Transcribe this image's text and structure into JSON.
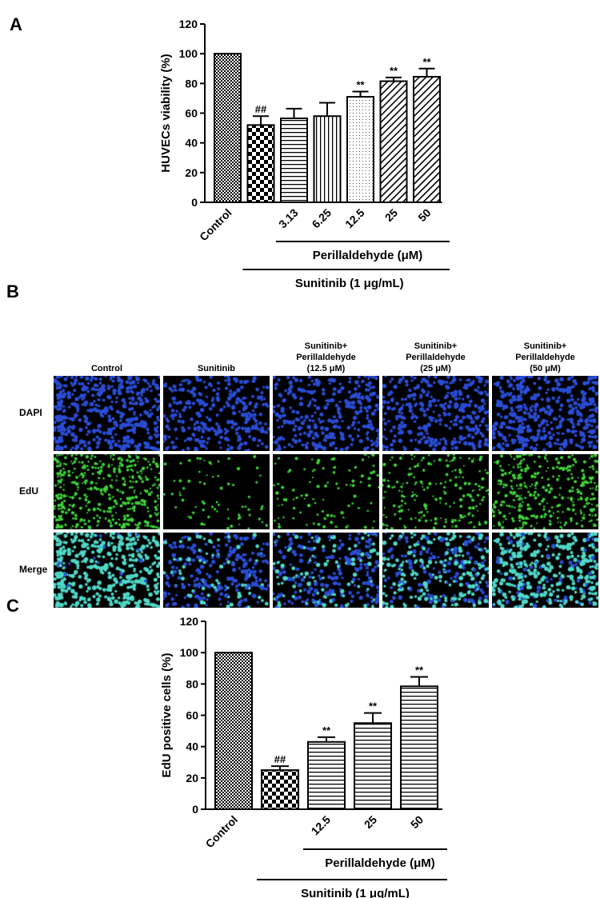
{
  "panels": {
    "a": "A",
    "b": "B",
    "c": "C"
  },
  "chart_data": [
    {
      "type": "bar",
      "panel": "A",
      "ylabel": "HUVECs viability (%)",
      "ylim": [
        0,
        120
      ],
      "yticks": [
        0,
        20,
        40,
        60,
        80,
        100,
        120
      ],
      "categories": [
        "Control",
        "",
        "3.13",
        "6.25",
        "12.5",
        "25",
        "50"
      ],
      "values": [
        100,
        52,
        56.5,
        58,
        71,
        81.5,
        84.5
      ],
      "errors": [
        0,
        6,
        6.5,
        9,
        3.5,
        2.5,
        5.5
      ],
      "significance": [
        "",
        "##",
        "",
        "",
        "**",
        "**",
        "**"
      ],
      "patterns": [
        "fine-check",
        "checker",
        "horizontal",
        "vertical",
        "dots",
        "diagonal",
        "diagonal"
      ],
      "group_labels": {
        "inner": "Perillaldehyde  (μM)",
        "outer": "Sunitinib (1 μg/mL)"
      },
      "grid": false
    },
    {
      "type": "bar",
      "panel": "C",
      "ylabel": "EdU positive cells (%)",
      "ylim": [
        0,
        120
      ],
      "yticks": [
        0,
        20,
        40,
        60,
        80,
        100,
        120
      ],
      "categories": [
        "Control",
        "",
        "12.5",
        "25",
        "50"
      ],
      "values": [
        100,
        25,
        43,
        55,
        78.5
      ],
      "errors": [
        0,
        2.5,
        3,
        6.5,
        6
      ],
      "significance": [
        "",
        "##",
        "**",
        "**",
        "**"
      ],
      "patterns": [
        "fine-check",
        "checker",
        "horizontal",
        "horizontal",
        "horizontal"
      ],
      "group_labels": {
        "inner": "Perillaldehyde (μM)",
        "outer": "Sunitinib (1 μg/mL)"
      },
      "grid": false
    }
  ],
  "microscopy": {
    "columns": [
      "Control",
      "Sunitinib",
      "Sunitinib+\nPerillaldehyde\n(12.5 μM)",
      "Sunitinib+\nPerillaldehyde\n(25 μM)",
      "Sunitinib+\nPerillaldehyde\n(50 μM)"
    ],
    "rows": [
      "DAPI",
      "EdU",
      "Merge"
    ],
    "nuclei_density": [
      1.0,
      0.65,
      0.7,
      0.8,
      0.95
    ],
    "edu_fraction": [
      0.95,
      0.22,
      0.35,
      0.55,
      0.8
    ],
    "colors": {
      "dapi": "#2a4dd6",
      "edu": "#3fd43a",
      "merge_edu": "#4fd8c8"
    }
  }
}
